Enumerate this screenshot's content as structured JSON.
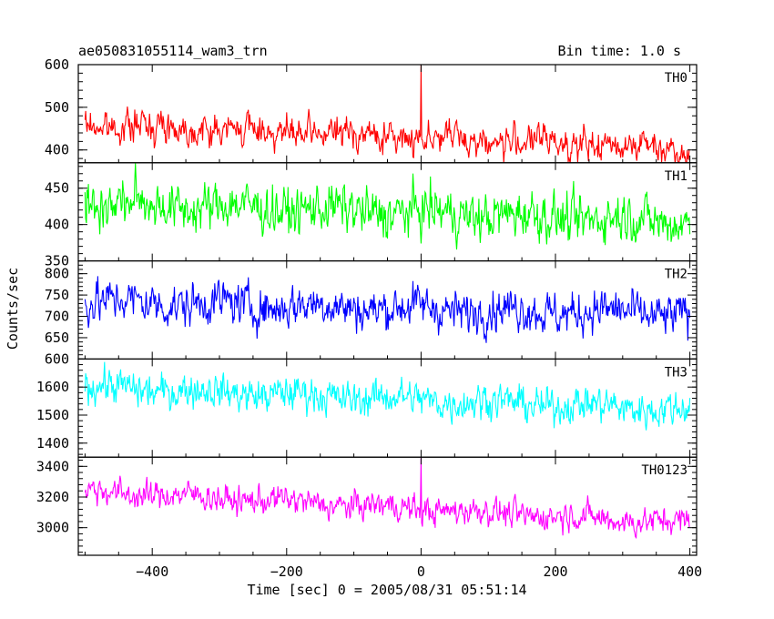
{
  "chart_data": {
    "type": "line",
    "title": "ae050831055114_wam3_trn",
    "bin_time_label": "Bin time: 1.0 s",
    "xlabel": "Time [sec] 0 = 2005/08/31 05:51:14",
    "ylabel": "Counts/sec",
    "xlim": [
      -510,
      410
    ],
    "x_ticks": [
      -400,
      -200,
      0,
      200,
      400
    ],
    "x_tick_labels": [
      "−400",
      "−200",
      "0",
      "200",
      "400"
    ],
    "x_data_range": [
      -500,
      400
    ],
    "bin_time_s": 1.0,
    "series": [
      {
        "name": "TH0",
        "color": "#ff0000",
        "ylim": [
          370,
          600
        ],
        "y_ticks": [
          400,
          500,
          600
        ],
        "y_tick_labels": [
          "400",
          "500",
          "600"
        ],
        "start_mean": 460,
        "end_mean": 405,
        "noise": 22,
        "spike_x": 0,
        "spike_y": 600
      },
      {
        "name": "TH1",
        "color": "#00ff00",
        "ylim": [
          350,
          485
        ],
        "y_ticks": [
          350,
          400,
          450
        ],
        "y_tick_labels": [
          "350",
          "400",
          "450"
        ],
        "start_mean": 430,
        "end_mean": 405,
        "noise": 20,
        "spike_x": null,
        "spike_y": null
      },
      {
        "name": "TH2",
        "color": "#0000ff",
        "ylim": [
          600,
          830
        ],
        "y_ticks": [
          600,
          650,
          700,
          750,
          800
        ],
        "y_tick_labels": [
          "600",
          "650",
          "700",
          "750",
          "800"
        ],
        "start_mean": 735,
        "end_mean": 705,
        "noise": 30,
        "spike_x": null,
        "spike_y": null
      },
      {
        "name": "TH3",
        "color": "#00ffff",
        "ylim": [
          1350,
          1700
        ],
        "y_ticks": [
          1400,
          1500,
          1600
        ],
        "y_tick_labels": [
          "1400",
          "1500",
          "1600"
        ],
        "start_mean": 1600,
        "end_mean": 1520,
        "noise": 38,
        "spike_x": null,
        "spike_y": null
      },
      {
        "name": "TH0123",
        "color": "#ff00ff",
        "ylim": [
          2820,
          3460
        ],
        "y_ticks": [
          3000,
          3200,
          3400
        ],
        "y_tick_labels": [
          "3000",
          "3200",
          "3400"
        ],
        "start_mean": 3240,
        "end_mean": 3030,
        "noise": 55,
        "spike_x": 0,
        "spike_y": 3460
      }
    ]
  }
}
